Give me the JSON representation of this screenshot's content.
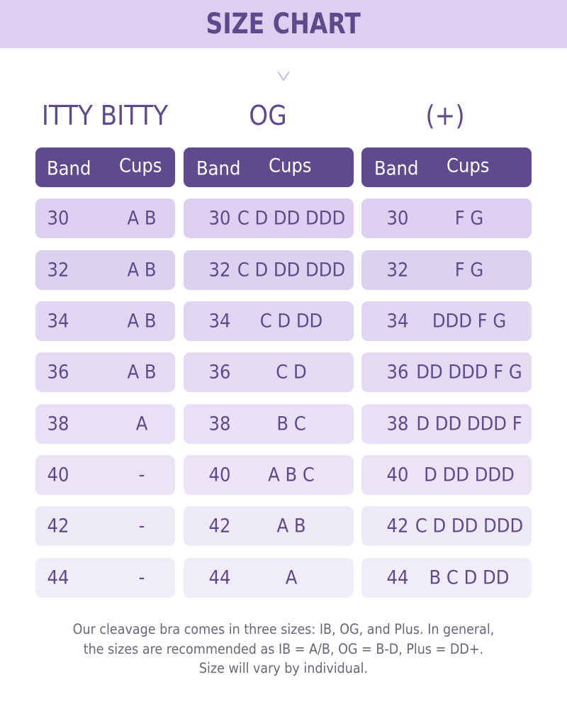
{
  "header": {
    "title": "SIZE CHART"
  },
  "columns": [
    {
      "title": "ITTY BITTY",
      "band_label": "Band",
      "cups_label": "Cups",
      "rows": [
        {
          "band": "30",
          "cups": "A B"
        },
        {
          "band": "32",
          "cups": "A B"
        },
        {
          "band": "34",
          "cups": "A B"
        },
        {
          "band": "36",
          "cups": "A B"
        },
        {
          "band": "38",
          "cups": "A"
        },
        {
          "band": "40",
          "cups": "-"
        },
        {
          "band": "42",
          "cups": "-"
        },
        {
          "band": "44",
          "cups": "-"
        }
      ]
    },
    {
      "title": "OG",
      "band_label": "Band",
      "cups_label": "Cups",
      "rows": [
        {
          "band": "30",
          "cups": "C D DD DDD"
        },
        {
          "band": "32",
          "cups": "C D DD DDD"
        },
        {
          "band": "34",
          "cups": "C D DD"
        },
        {
          "band": "36",
          "cups": "C D"
        },
        {
          "band": "38",
          "cups": "B C"
        },
        {
          "band": "40",
          "cups": "A B C"
        },
        {
          "band": "42",
          "cups": "A B"
        },
        {
          "band": "44",
          "cups": "A"
        }
      ]
    },
    {
      "title": "(+)",
      "band_label": "Band",
      "cups_label": "Cups",
      "rows": [
        {
          "band": "30",
          "cups": "F G"
        },
        {
          "band": "32",
          "cups": "F G"
        },
        {
          "band": "34",
          "cups": "DDD F G"
        },
        {
          "band": "36",
          "cups": "DD DDD F G"
        },
        {
          "band": "38",
          "cups": "D DD DDD F"
        },
        {
          "band": "40",
          "cups": "D DD DDD"
        },
        {
          "band": "42",
          "cups": "C D DD DDD"
        },
        {
          "band": "44",
          "cups": "B C D DD"
        }
      ]
    }
  ],
  "footer": {
    "line1": "Our cleavage bra comes in three sizes: IB, OG, and Plus. In general,",
    "line2": "the sizes are recommended as IB = A/B, OG = B-D, Plus = DD+.",
    "line3": "Size will vary by individual."
  },
  "colors": {
    "header_band": "#dccff0",
    "header_row": "#604a8e",
    "text_purple": "#5d4a8c",
    "row_shades": [
      "#dccff0",
      "#ddd1f0",
      "#e1d6f2",
      "#e4daf3",
      "#e8e0f5",
      "#ebe4f6",
      "#eee9f7",
      "#f1edf8"
    ]
  },
  "icons": {
    "scroll_hint": "chevron-down-icon"
  }
}
